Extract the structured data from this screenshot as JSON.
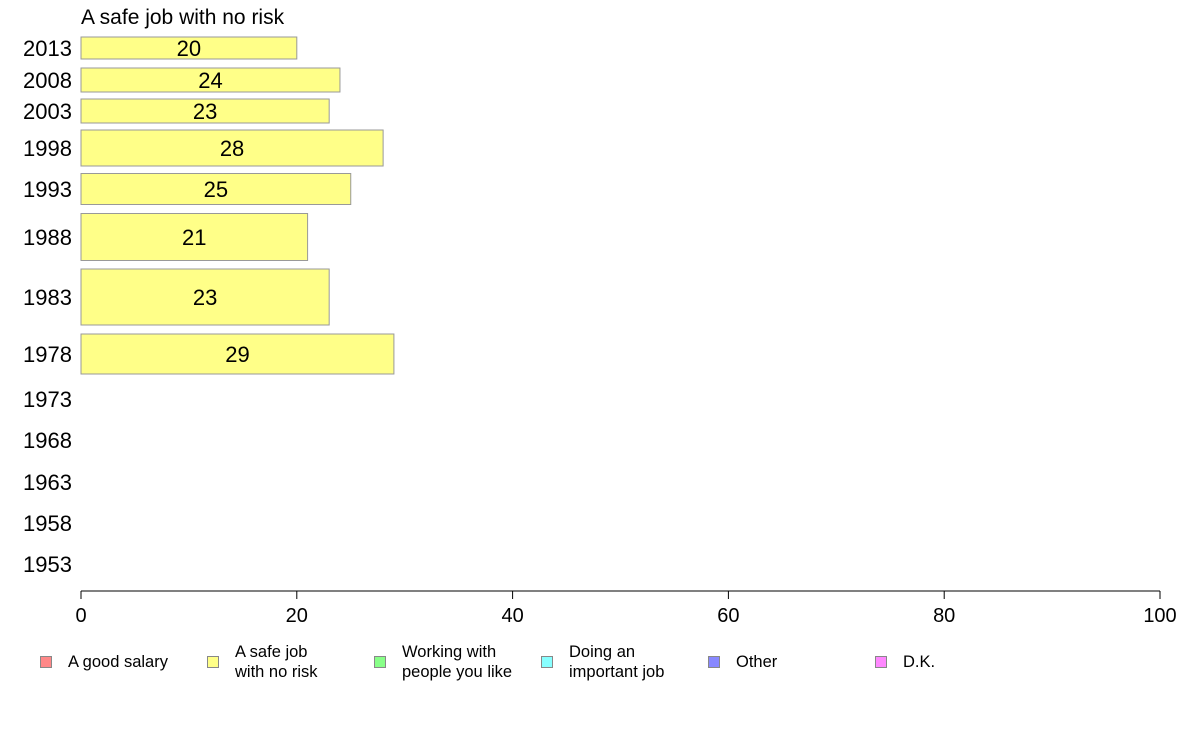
{
  "chart_data": {
    "type": "bar",
    "orientation": "horizontal",
    "title": "A safe job with no risk",
    "xlabel": "",
    "ylabel": "",
    "xlim": [
      0,
      100
    ],
    "x_ticks": [
      "0",
      "20",
      "40",
      "60",
      "80",
      "100"
    ],
    "categories": [
      "2013",
      "2008",
      "2003",
      "1998",
      "1993",
      "1988",
      "1983",
      "1978",
      "1973",
      "1968",
      "1963",
      "1958",
      "1953"
    ],
    "series": [
      {
        "name": "A safe job with no risk",
        "color": "#ffff88",
        "values": [
          20,
          24,
          23,
          28,
          25,
          21,
          23,
          29,
          null,
          null,
          null,
          null,
          null
        ],
        "labels": [
          "20",
          "24",
          "23",
          "28",
          "25",
          "21",
          "23",
          "29",
          "",
          "",
          "",
          "",
          ""
        ]
      }
    ],
    "grid": false,
    "legend_position": "bottom"
  },
  "legend": {
    "items": [
      {
        "label": "A good salary",
        "color": "#ff8888"
      },
      {
        "label": "A safe job\nwith no risk",
        "color": "#ffff88"
      },
      {
        "label": "Working with\npeople you like",
        "color": "#88ff88"
      },
      {
        "label": "Doing an\nimportant job",
        "color": "#88ffff"
      },
      {
        "label": "Other",
        "color": "#8888ff"
      },
      {
        "label": "D.K.",
        "color": "#ff88ff"
      }
    ]
  }
}
